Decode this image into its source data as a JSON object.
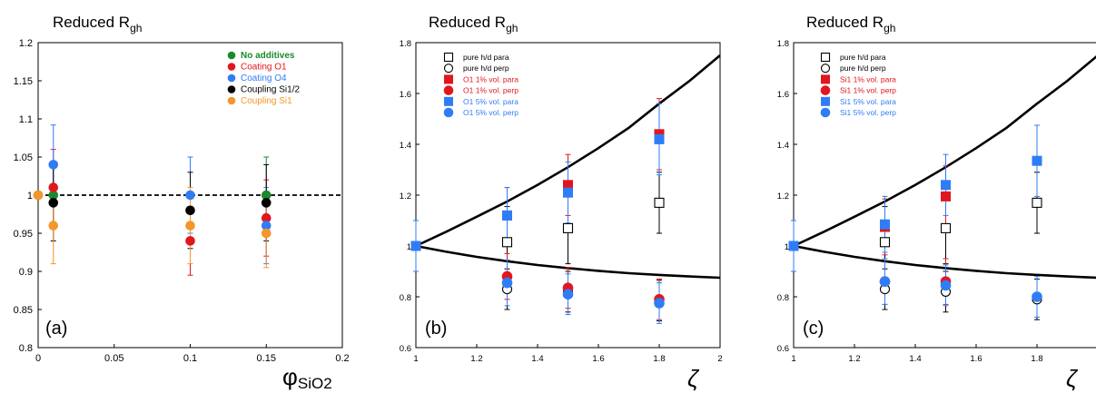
{
  "chart_data": [
    {
      "type": "scatter",
      "title_main": "Reduced R",
      "title_sub": "gh",
      "panel_label": "(a)",
      "xlabel_main": "φ",
      "xlabel_sub": "SiO2",
      "xlim": [
        0,
        0.2
      ],
      "ylim": [
        0.8,
        1.2
      ],
      "xticks": [
        0,
        0.05,
        0.1,
        0.15,
        0.2
      ],
      "xtick_labels": [
        "0",
        "0.05",
        "0.1",
        "0.15",
        "0.2"
      ],
      "yticks": [
        0.8,
        0.85,
        0.9,
        0.95,
        1,
        1.05,
        1.1,
        1.15,
        1.2
      ],
      "ytick_labels": [
        "0.8",
        "0.85",
        "0.9",
        "0.95",
        "1",
        "1.05",
        "1.1",
        "1.15",
        "1.2"
      ],
      "reference_line_y": 1,
      "series": [
        {
          "name": "No additives",
          "color": "#1a8a2a",
          "marker": "circle-filled",
          "points": [
            {
              "x": 0,
              "y": 1,
              "err": 0
            },
            {
              "x": 0.01,
              "y": 1,
              "err": 0.01
            },
            {
              "x": 0.15,
              "y": 1,
              "err": 0.05
            }
          ]
        },
        {
          "name": "Coating O1",
          "color": "#e0171e",
          "marker": "circle-filled",
          "points": [
            {
              "x": 0.01,
              "y": 1.01,
              "err": 0.05
            },
            {
              "x": 0.1,
              "y": 0.94,
              "err": 0.045
            },
            {
              "x": 0.15,
              "y": 0.97,
              "err": 0.05
            }
          ]
        },
        {
          "name": "Coating O4",
          "color": "#2f7df6",
          "marker": "circle-filled",
          "points": [
            {
              "x": 0.01,
              "y": 1.04,
              "err": 0.052
            },
            {
              "x": 0.1,
              "y": 1.0,
              "err": 0.05
            },
            {
              "x": 0.15,
              "y": 0.96,
              "err": 0.05
            }
          ]
        },
        {
          "name": "Coupling Si1/2",
          "color": "#000000",
          "marker": "circle-filled",
          "points": [
            {
              "x": 0.01,
              "y": 0.99,
              "err": 0.05
            },
            {
              "x": 0.1,
              "y": 0.98,
              "err": 0.05
            },
            {
              "x": 0.15,
              "y": 0.99,
              "err": 0.05
            }
          ]
        },
        {
          "name": "Coupling Si1",
          "color": "#f5962a",
          "marker": "circle-filled",
          "points": [
            {
              "x": 0,
              "y": 1,
              "err": 0
            },
            {
              "x": 0.01,
              "y": 0.96,
              "err": 0.05
            },
            {
              "x": 0.1,
              "y": 0.96,
              "err": 0.05
            },
            {
              "x": 0.15,
              "y": 0.95,
              "err": 0.045
            }
          ]
        }
      ]
    },
    {
      "type": "scatter",
      "title_main": "Reduced R",
      "title_sub": "gh",
      "panel_label": "(b)",
      "xlabel_main": "ζ",
      "xlabel_sub": "",
      "xlim": [
        1,
        2
      ],
      "ylim": [
        0.6,
        1.8
      ],
      "xticks": [
        1,
        1.2,
        1.4,
        1.6,
        1.8,
        2
      ],
      "xtick_labels": [
        "1",
        "1.2",
        "1.4",
        "1.6",
        "1.8",
        "2"
      ],
      "yticks": [
        0.6,
        0.8,
        1,
        1.2,
        1.4,
        1.6,
        1.8
      ],
      "ytick_labels": [
        "0.6",
        "0.8",
        "1",
        "1.2",
        "1.4",
        "1.6",
        "1.8"
      ],
      "curves": [
        {
          "x": [
            1,
            1.1,
            1.2,
            1.3,
            1.4,
            1.5,
            1.6,
            1.7,
            1.8,
            1.9,
            2
          ],
          "y": [
            1,
            1.056,
            1.115,
            1.175,
            1.24,
            1.31,
            1.385,
            1.465,
            1.56,
            1.65,
            1.75
          ]
        },
        {
          "x": [
            1,
            1.1,
            1.2,
            1.3,
            1.4,
            1.5,
            1.6,
            1.7,
            1.8,
            1.9,
            2
          ],
          "y": [
            1,
            0.977,
            0.957,
            0.94,
            0.925,
            0.913,
            0.902,
            0.893,
            0.886,
            0.88,
            0.875
          ]
        }
      ],
      "series": [
        {
          "name": "pure h/d para",
          "color": "#000000",
          "marker": "square-open",
          "points": [
            {
              "x": 1.3,
              "y": 1.015,
              "err": 0.14
            },
            {
              "x": 1.5,
              "y": 1.07,
              "err": 0.14
            },
            {
              "x": 1.8,
              "y": 1.17,
              "err": 0.12
            }
          ]
        },
        {
          "name": "pure h/d perp",
          "color": "#000000",
          "marker": "circle-open",
          "points": [
            {
              "x": 1.3,
              "y": 0.83,
              "err": 0.08
            },
            {
              "x": 1.5,
              "y": 0.82,
              "err": 0.08
            },
            {
              "x": 1.8,
              "y": 0.785,
              "err": 0.08
            }
          ]
        },
        {
          "name": "O1 1% vol. para",
          "color": "#e0171e",
          "marker": "square-filled",
          "points": [
            {
              "x": 1,
              "y": 1,
              "err": 0.1
            },
            {
              "x": 1.3,
              "y": 1.12,
              "err": 0.11
            },
            {
              "x": 1.5,
              "y": 1.24,
              "err": 0.12
            },
            {
              "x": 1.8,
              "y": 1.44,
              "err": 0.14
            }
          ]
        },
        {
          "name": "O1 1% vol. perp",
          "color": "#e0171e",
          "marker": "circle-filled",
          "points": [
            {
              "x": 1.3,
              "y": 0.88,
              "err": 0.09
            },
            {
              "x": 1.5,
              "y": 0.835,
              "err": 0.08
            },
            {
              "x": 1.8,
              "y": 0.79,
              "err": 0.08
            }
          ]
        },
        {
          "name": "O1 5% vol. para",
          "color": "#2f7df6",
          "marker": "square-filled",
          "points": [
            {
              "x": 1,
              "y": 1,
              "err": 0.1
            },
            {
              "x": 1.3,
              "y": 1.12,
              "err": 0.11
            },
            {
              "x": 1.5,
              "y": 1.21,
              "err": 0.12
            },
            {
              "x": 1.8,
              "y": 1.42,
              "err": 0.14
            }
          ]
        },
        {
          "name": "O1 5% vol. perp",
          "color": "#2f7df6",
          "marker": "circle-filled",
          "points": [
            {
              "x": 1.3,
              "y": 0.855,
              "err": 0.09
            },
            {
              "x": 1.5,
              "y": 0.81,
              "err": 0.08
            },
            {
              "x": 1.8,
              "y": 0.775,
              "err": 0.08
            }
          ]
        }
      ]
    },
    {
      "type": "scatter",
      "title_main": "Reduced R",
      "title_sub": "gh",
      "panel_label": "(c)",
      "xlabel_main": "ζ",
      "xlabel_sub": "",
      "xlim": [
        1,
        2
      ],
      "ylim": [
        0.6,
        1.8
      ],
      "xticks": [
        1,
        1.2,
        1.4,
        1.6,
        1.8
      ],
      "xtick_labels": [
        "1",
        "1.2",
        "1.4",
        "1.6",
        "1.8"
      ],
      "yticks": [
        0.6,
        0.8,
        1,
        1.2,
        1.4,
        1.6,
        1.8
      ],
      "ytick_labels": [
        "0.6",
        "0.8",
        "1",
        "1.2",
        "1.4",
        "1.6",
        "1.8"
      ],
      "curves": [
        {
          "x": [
            1,
            1.1,
            1.2,
            1.3,
            1.4,
            1.5,
            1.6,
            1.7,
            1.8,
            1.9,
            2
          ],
          "y": [
            1,
            1.056,
            1.115,
            1.175,
            1.24,
            1.31,
            1.385,
            1.465,
            1.56,
            1.65,
            1.75
          ]
        },
        {
          "x": [
            1,
            1.1,
            1.2,
            1.3,
            1.4,
            1.5,
            1.6,
            1.7,
            1.8,
            1.9,
            2
          ],
          "y": [
            1,
            0.977,
            0.957,
            0.94,
            0.925,
            0.913,
            0.902,
            0.893,
            0.886,
            0.88,
            0.875
          ]
        }
      ],
      "series": [
        {
          "name": "pure h/d para",
          "color": "#000000",
          "marker": "square-open",
          "points": [
            {
              "x": 1.3,
              "y": 1.015,
              "err": 0.14
            },
            {
              "x": 1.5,
              "y": 1.07,
              "err": 0.14
            },
            {
              "x": 1.8,
              "y": 1.17,
              "err": 0.12
            }
          ]
        },
        {
          "name": "pure h/d perp",
          "color": "#000000",
          "marker": "circle-open",
          "points": [
            {
              "x": 1.3,
              "y": 0.83,
              "err": 0.08
            },
            {
              "x": 1.5,
              "y": 0.82,
              "err": 0.08
            },
            {
              "x": 1.8,
              "y": 0.79,
              "err": 0.08
            }
          ]
        },
        {
          "name": "Si1 1% vol. para",
          "color": "#e0171e",
          "marker": "square-filled",
          "points": [
            {
              "x": 1,
              "y": 1,
              "err": 0.1
            },
            {
              "x": 1.3,
              "y": 1.075,
              "err": 0.11
            },
            {
              "x": 1.5,
              "y": 1.195,
              "err": 0.12
            }
          ]
        },
        {
          "name": "Si1 1% vol. perp",
          "color": "#e0171e",
          "marker": "circle-filled",
          "points": [
            {
              "x": 1.3,
              "y": 0.86,
              "err": 0.09
            },
            {
              "x": 1.5,
              "y": 0.86,
              "err": 0.09
            }
          ]
        },
        {
          "name": "Si1 5% vol. para",
          "color": "#2f7df6",
          "marker": "square-filled",
          "points": [
            {
              "x": 1,
              "y": 1,
              "err": 0.1
            },
            {
              "x": 1.3,
              "y": 1.085,
              "err": 0.11
            },
            {
              "x": 1.5,
              "y": 1.24,
              "err": 0.12
            },
            {
              "x": 1.8,
              "y": 1.335,
              "err": 0.14
            }
          ]
        },
        {
          "name": "Si1 5% vol. perp",
          "color": "#2f7df6",
          "marker": "circle-filled",
          "points": [
            {
              "x": 1.3,
              "y": 0.86,
              "err": 0.09
            },
            {
              "x": 1.5,
              "y": 0.845,
              "err": 0.08
            },
            {
              "x": 1.8,
              "y": 0.8,
              "err": 0.08
            }
          ]
        }
      ]
    }
  ]
}
